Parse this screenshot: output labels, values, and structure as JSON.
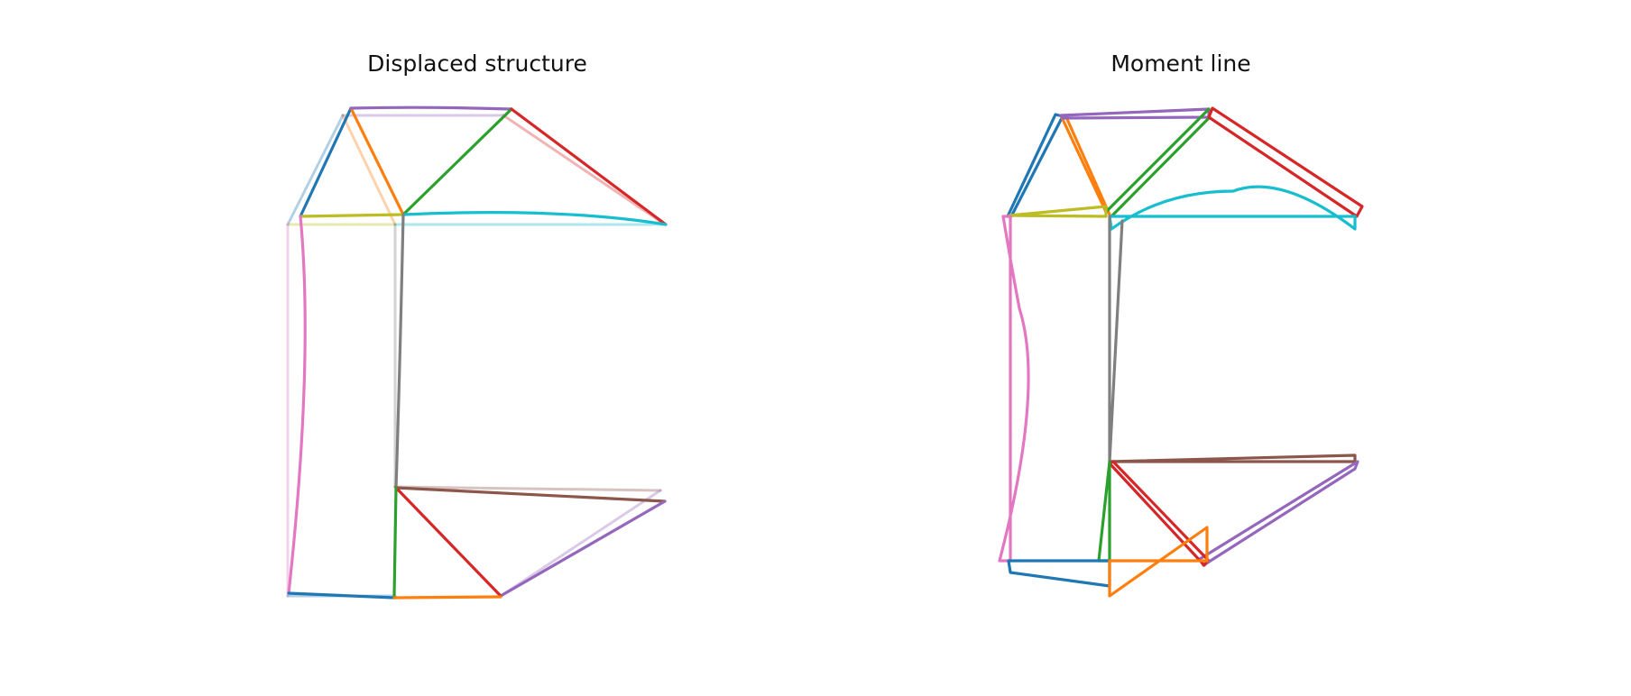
{
  "panels": [
    {
      "id": "displaced",
      "title": "Displaced structure"
    },
    {
      "id": "moment",
      "title": "Moment line"
    }
  ],
  "colors": {
    "c1": "#1f77b4",
    "c2": "#ff7f0e",
    "c3": "#2ca02c",
    "c4": "#d62728",
    "c5": "#9467bd",
    "c6": "#8c564b",
    "c7": "#e377c2",
    "c8": "#7f7f7f",
    "c9": "#bcbd22",
    "c10": "#17becf"
  }
}
